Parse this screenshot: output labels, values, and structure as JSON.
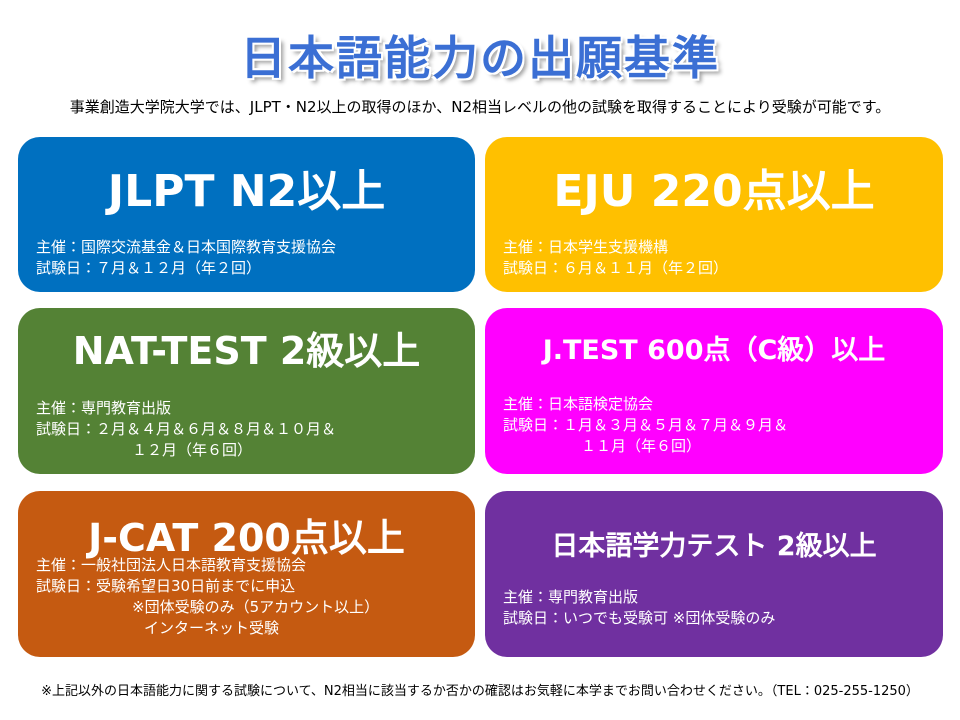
{
  "title": "日本語能力の出願基準",
  "subtitle": "事業創造大学院大学では、JLPT・N2以上の取得のほか、N2相当レベルの他の試験を取得することにより受験が可能です。",
  "cards": [
    {
      "title": "JLPT N2以上",
      "lines": [
        "主催：国際交流基金＆日本国際教育支援協会",
        "試験日：７月＆１２月（年２回）"
      ]
    },
    {
      "title": "EJU 220点以上",
      "lines": [
        "主催：日本学生支援機構",
        "試験日：６月＆１１月（年２回）"
      ]
    },
    {
      "title": "NAT-TEST 2級以上",
      "lines": [
        "主催：専門教育出版",
        "試験日：２月＆４月＆６月＆８月＆１０月＆",
        "１２月（年６回）"
      ]
    },
    {
      "title": "J.TEST 600点（C級）以上",
      "lines": [
        "主催：日本語検定協会",
        "試験日：１月＆３月＆５月＆７月＆９月＆",
        "１１月（年６回）"
      ]
    },
    {
      "title": "J-CAT 200点以上",
      "lines": [
        "主催：一般社団法人日本語教育支援協会",
        "試験日：受験希望日30日前までに申込",
        "※団体受験のみ（5アカウント以上）",
        "インターネット受験"
      ]
    },
    {
      "title": "日本語学力テスト 2級以上",
      "lines": [
        "主催：専門教育出版",
        "試験日：いつでも受験可 ※団体受験のみ"
      ]
    }
  ],
  "footnote": "※上記以外の日本語能力に関する試験について、N2相当に該当するか否かの確認はお気軽に本学までお問い合わせください。（TEL：025-255-1250）"
}
